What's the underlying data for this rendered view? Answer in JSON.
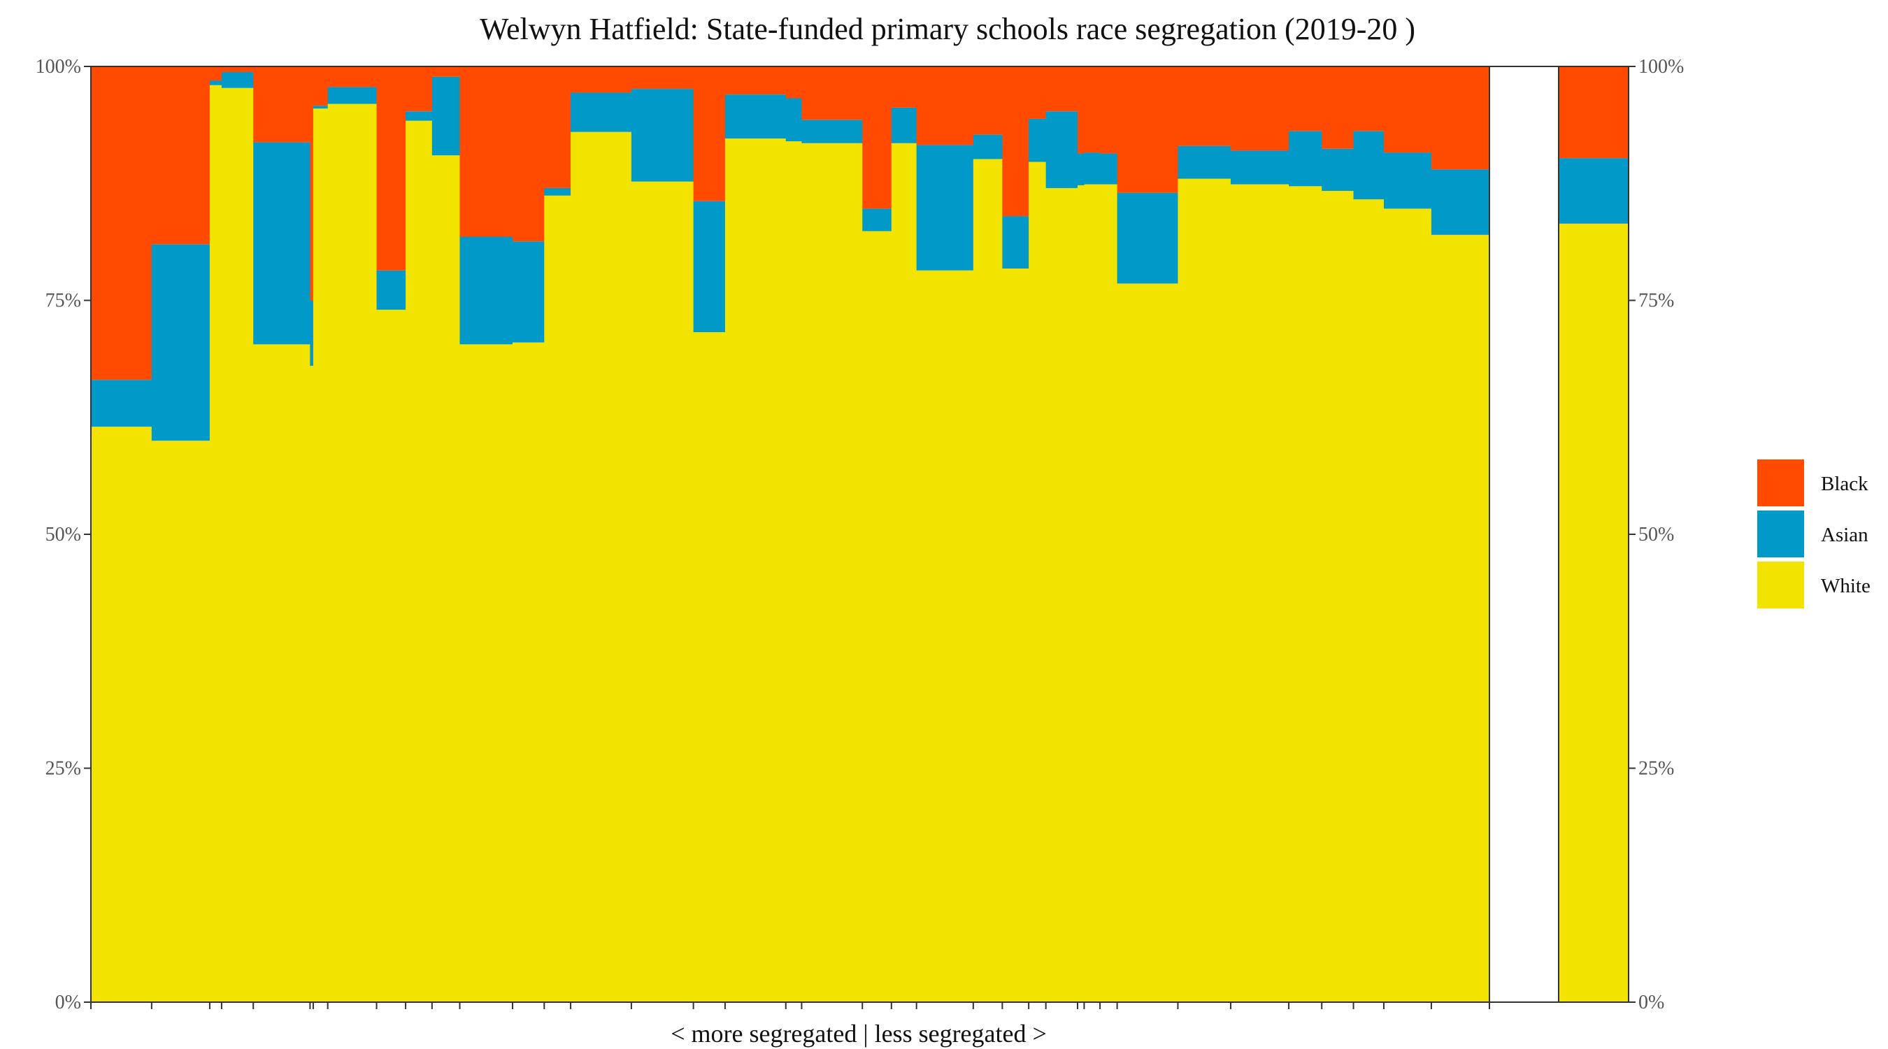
{
  "chart_data": {
    "type": "bar",
    "variant": "stacked-100-percent, variable-width bars, plus separate summary bar",
    "title": "Welwyn Hatfield: State-funded primary schools race segregation (2019-20 )",
    "xlabel": "< more segregated | less segregated >",
    "ylabel": "",
    "ylim": [
      0,
      100
    ],
    "yticks": [
      "0%",
      "25%",
      "50%",
      "75%",
      "100%"
    ],
    "grid": false,
    "legend_position": "right",
    "stack_order": [
      "White",
      "Asian",
      "Black"
    ],
    "legend_entries": [
      "Black",
      "Asian",
      "White"
    ],
    "colors": {
      "Black": "#FF4A00",
      "Asian": "#0099C8",
      "White": "#F2E400"
    },
    "schools": [
      {
        "w": 2.3,
        "White": 61.5,
        "Asian": 5.0,
        "Black": 33.5
      },
      {
        "w": 2.2,
        "White": 60.0,
        "Asian": 21.0,
        "Black": 19.0
      },
      {
        "w": 0.45,
        "White": 98.0,
        "Asian": 0.5,
        "Black": 1.5
      },
      {
        "w": 1.2,
        "White": 97.7,
        "Asian": 1.7,
        "Black": 0.6
      },
      {
        "w": 2.15,
        "White": 70.3,
        "Asian": 21.6,
        "Black": 8.1
      },
      {
        "w": 0.12,
        "White": 68.0,
        "Asian": 7.0,
        "Black": 25.0
      },
      {
        "w": 0.55,
        "White": 95.5,
        "Asian": 0.3,
        "Black": 4.2
      },
      {
        "w": 1.85,
        "White": 96.0,
        "Asian": 1.8,
        "Black": 2.2
      },
      {
        "w": 1.1,
        "White": 74.0,
        "Asian": 4.2,
        "Black": 21.8
      },
      {
        "w": 1.0,
        "White": 94.2,
        "Asian": 1.0,
        "Black": 4.8
      },
      {
        "w": 1.05,
        "White": 90.5,
        "Asian": 8.4,
        "Black": 1.1
      },
      {
        "w": 2.0,
        "White": 70.3,
        "Asian": 11.5,
        "Black": 18.2
      },
      {
        "w": 1.2,
        "White": 70.5,
        "Asian": 10.8,
        "Black": 18.7
      },
      {
        "w": 1.0,
        "White": 86.2,
        "Asian": 0.8,
        "Black": 13.0
      },
      {
        "w": 2.3,
        "White": 93.0,
        "Asian": 4.2,
        "Black": 2.8
      },
      {
        "w": 2.35,
        "White": 87.7,
        "Asian": 9.9,
        "Black": 2.4
      },
      {
        "w": 1.2,
        "White": 71.6,
        "Asian": 14.0,
        "Black": 14.4
      },
      {
        "w": 2.3,
        "White": 92.3,
        "Asian": 4.7,
        "Black": 3.0
      },
      {
        "w": 0.6,
        "White": 92.0,
        "Asian": 4.6,
        "Black": 3.4
      },
      {
        "w": 2.3,
        "White": 91.8,
        "Asian": 2.5,
        "Black": 5.7
      },
      {
        "w": 1.1,
        "White": 82.4,
        "Asian": 2.4,
        "Black": 15.2
      },
      {
        "w": 0.95,
        "White": 91.8,
        "Asian": 3.8,
        "Black": 4.4
      },
      {
        "w": 2.15,
        "White": 78.2,
        "Asian": 13.4,
        "Black": 8.4
      },
      {
        "w": 1.1,
        "White": 90.1,
        "Asian": 2.6,
        "Black": 7.3
      },
      {
        "w": 1.0,
        "White": 78.4,
        "Asian": 5.6,
        "Black": 16.0
      },
      {
        "w": 0.65,
        "White": 89.8,
        "Asian": 4.6,
        "Black": 5.6
      },
      {
        "w": 1.2,
        "White": 87.0,
        "Asian": 8.2,
        "Black": 4.8
      },
      {
        "w": 0.25,
        "White": 87.3,
        "Asian": 3.4,
        "Black": 9.3
      },
      {
        "w": 0.6,
        "White": 87.4,
        "Asian": 3.4,
        "Black": 9.2
      },
      {
        "w": 0.65,
        "White": 87.4,
        "Asian": 3.3,
        "Black": 9.3
      },
      {
        "w": 2.3,
        "White": 76.8,
        "Asian": 9.7,
        "Black": 13.5
      },
      {
        "w": 2.0,
        "White": 88.0,
        "Asian": 3.5,
        "Black": 8.5
      },
      {
        "w": 2.2,
        "White": 87.4,
        "Asian": 3.6,
        "Black": 9.0
      },
      {
        "w": 1.25,
        "White": 87.2,
        "Asian": 5.9,
        "Black": 6.9
      },
      {
        "w": 1.2,
        "White": 86.7,
        "Asian": 4.5,
        "Black": 8.8
      },
      {
        "w": 1.15,
        "White": 85.8,
        "Asian": 7.3,
        "Black": 6.9
      },
      {
        "w": 1.8,
        "White": 84.8,
        "Asian": 6.0,
        "Black": 9.2
      },
      {
        "w": 2.2,
        "White": 82.0,
        "Asian": 7.0,
        "Black": 11.0
      }
    ],
    "summary": {
      "White": 83.2,
      "Asian": 7.0,
      "Black": 9.8
    }
  }
}
